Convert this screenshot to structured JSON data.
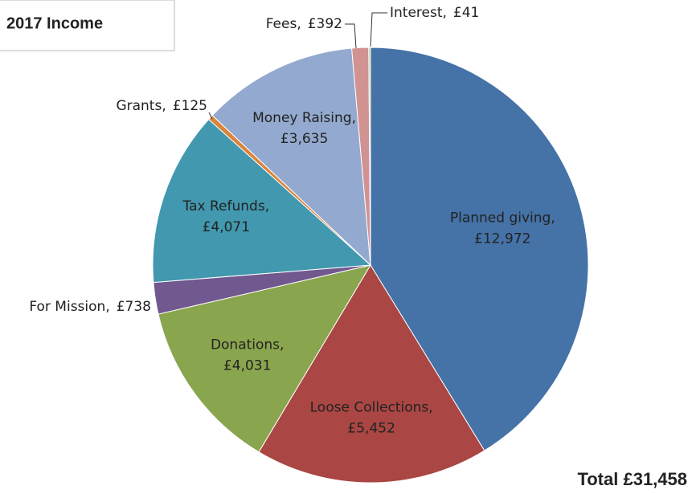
{
  "chart_data": {
    "type": "pie",
    "title": "2017 Income",
    "categories": [
      "Planned giving",
      "Loose Collections",
      "Donations",
      "For Mission",
      "Tax Refunds",
      "Grants",
      "Money Raising",
      "Fees",
      "Interest"
    ],
    "values": [
      12972,
      5452,
      4031,
      738,
      4071,
      125,
      3635,
      392,
      41
    ],
    "value_labels": [
      "£12,972",
      "£5,452",
      "£4,031",
      "£738",
      "£4,071",
      "£125",
      "£3,635",
      "£392",
      "£41"
    ],
    "label_separator": ",",
    "colors": [
      "#4572a7",
      "#aa4643",
      "#89a54e",
      "#71588f",
      "#4198af",
      "#db843d",
      "#93a9cf",
      "#d19392",
      "#b9cd96"
    ],
    "annotation": "Total £31,458"
  }
}
